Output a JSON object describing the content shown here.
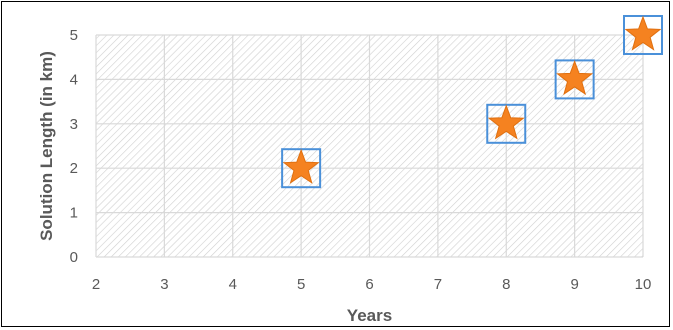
{
  "chart_data": {
    "type": "scatter",
    "xlabel": "Years",
    "ylabel": "Solution Length (in km)",
    "xlim": [
      2,
      10
    ],
    "ylim": [
      0,
      5
    ],
    "xticks": [
      "2",
      "3",
      "4",
      "5",
      "6",
      "7",
      "8",
      "9",
      "10"
    ],
    "yticks": [
      "0",
      "1",
      "2",
      "3",
      "4",
      "5"
    ],
    "grid": true,
    "series": [
      {
        "points": [
          {
            "x": 5,
            "y": 2
          },
          {
            "x": 8,
            "y": 3
          },
          {
            "x": 9,
            "y": 4
          },
          {
            "x": 10,
            "y": 5
          }
        ],
        "marker": "star",
        "marker_color": "#F58220",
        "box_color": "#4A90D9"
      }
    ]
  }
}
